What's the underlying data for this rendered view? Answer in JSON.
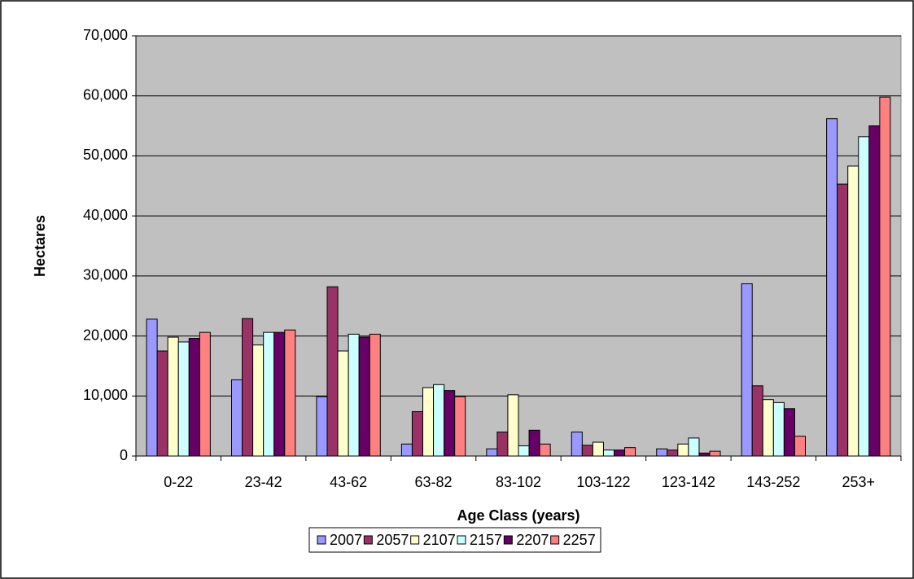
{
  "chart_data": {
    "type": "bar",
    "x_label": "Age Class (years)",
    "y_label": "Hectares",
    "categories": [
      "0-22",
      "23-42",
      "43-62",
      "63-82",
      "83-102",
      "103-122",
      "123-142",
      "143-252",
      "253+"
    ],
    "series": [
      {
        "name": "2007",
        "color": "#9999ff",
        "values": [
          22800,
          12700,
          9900,
          2000,
          1200,
          4000,
          1200,
          28700,
          56200
        ]
      },
      {
        "name": "2057",
        "color": "#993366",
        "values": [
          17500,
          22900,
          28200,
          7400,
          4000,
          1800,
          1000,
          11700,
          45300
        ]
      },
      {
        "name": "2107",
        "color": "#ffffcc",
        "values": [
          19800,
          18500,
          17500,
          11400,
          10200,
          2300,
          2000,
          9400,
          48300
        ]
      },
      {
        "name": "2157",
        "color": "#ccffff",
        "values": [
          19000,
          20600,
          20300,
          11900,
          1700,
          1000,
          3000,
          8900,
          53200
        ]
      },
      {
        "name": "2207",
        "color": "#660066",
        "values": [
          19600,
          20600,
          19800,
          10900,
          4300,
          1000,
          500,
          7900,
          55000
        ]
      },
      {
        "name": "2257",
        "color": "#ff8080",
        "values": [
          20600,
          21000,
          20300,
          9900,
          2000,
          1400,
          800,
          3300,
          59800
        ]
      }
    ],
    "ylim": [
      0,
      70000
    ],
    "yticks": [
      0,
      {
        "value": 10000,
        "label": "10,000"
      },
      {
        "value": 20000,
        "label": "20,000"
      },
      {
        "value": 30000,
        "label": "30,000"
      },
      {
        "value": 40000,
        "label": "40,000"
      },
      {
        "value": 50000,
        "label": "50,000"
      },
      {
        "value": 60000,
        "label": "60,000"
      },
      {
        "value": 70000,
        "label": "70,000"
      }
    ],
    "grid": true,
    "plot_background": "#c0c0c0",
    "legend": "bottom"
  }
}
